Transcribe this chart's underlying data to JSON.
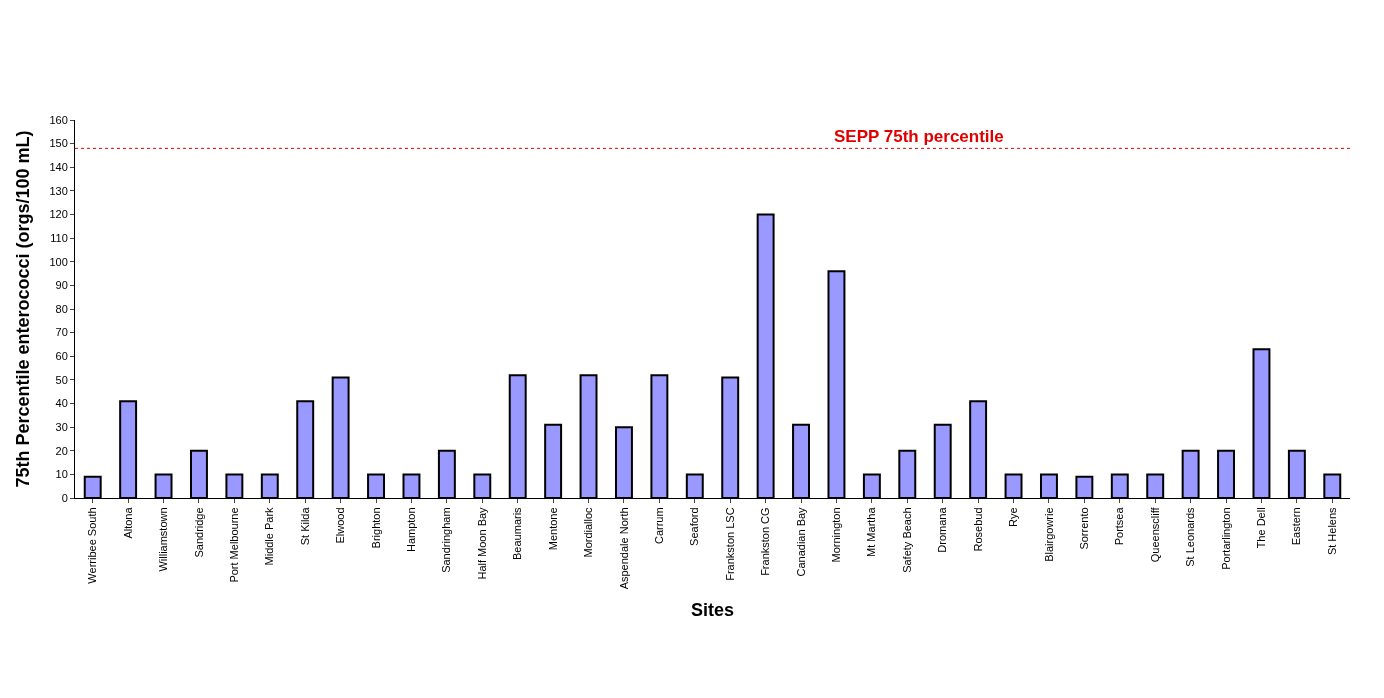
{
  "chart_data": {
    "type": "bar",
    "xlabel": "Sites",
    "ylabel": "75th Percentile enterococci (orgs/100 mL)",
    "categories": [
      "Werribee South",
      "Altona",
      "Williamstown",
      "Sandridge",
      "Port Melbourne",
      "Middle Park",
      "St Kilda",
      "Elwood",
      "Brighton",
      "Hampton",
      "Sandringham",
      "Half Moon Bay",
      "Beaumaris",
      "Mentone",
      "Mordialloc",
      "Aspendale North",
      "Carrum",
      "Seaford",
      "Frankston LSC",
      "Frankston CG",
      "Canadian Bay",
      "Mornington",
      "Mt Martha",
      "Safety Beach",
      "Dromana",
      "Rosebud",
      "Rye",
      "Blairgowrie",
      "Sorrento",
      "Portsea",
      "Queenscliff",
      "St Leonards",
      "Portarlington",
      "The Dell",
      "Eastern",
      "St Helens"
    ],
    "values": [
      9,
      41,
      10,
      20,
      10,
      10,
      41,
      51,
      10,
      10,
      20,
      10,
      52,
      31,
      52,
      30,
      52,
      10,
      51,
      120,
      31,
      96,
      10,
      20,
      31,
      41,
      10,
      10,
      9,
      10,
      10,
      20,
      20,
      63,
      20,
      10
    ],
    "color": "#9999ff",
    "ylim": [
      0,
      160
    ],
    "yticks": [
      0,
      10,
      20,
      30,
      40,
      50,
      60,
      70,
      80,
      90,
      100,
      110,
      120,
      130,
      140,
      150,
      160
    ],
    "ref_lines": [
      {
        "axis": "y",
        "value": 148,
        "label": "SEPP 75th percentile",
        "color": "#e00000",
        "line_style": "dotted"
      }
    ]
  }
}
